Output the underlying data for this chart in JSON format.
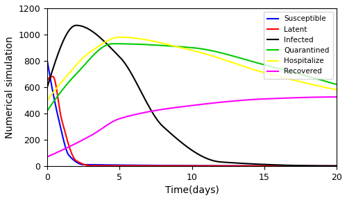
{
  "title": "",
  "xlabel": "Time(days)",
  "ylabel": "Numerical simulation",
  "xlim": [
    0,
    20
  ],
  "ylim": [
    0,
    1200
  ],
  "yticks": [
    0,
    200,
    400,
    600,
    800,
    1000,
    1200
  ],
  "xticks": [
    0,
    5,
    10,
    15,
    20
  ],
  "colors": {
    "Susceptible": "#0000FF",
    "Latent": "#FF0000",
    "Infected": "#000000",
    "Quarantined": "#00CC00",
    "Hospitalize": "#FFFF00",
    "Recovered": "#FF00FF"
  },
  "legend_labels": [
    "Susceptible",
    "Latent",
    "Infected",
    "Quarantined",
    "Hospitalize",
    "Recovered"
  ],
  "background_color": "#FFFFFF",
  "linewidth": 1.5
}
